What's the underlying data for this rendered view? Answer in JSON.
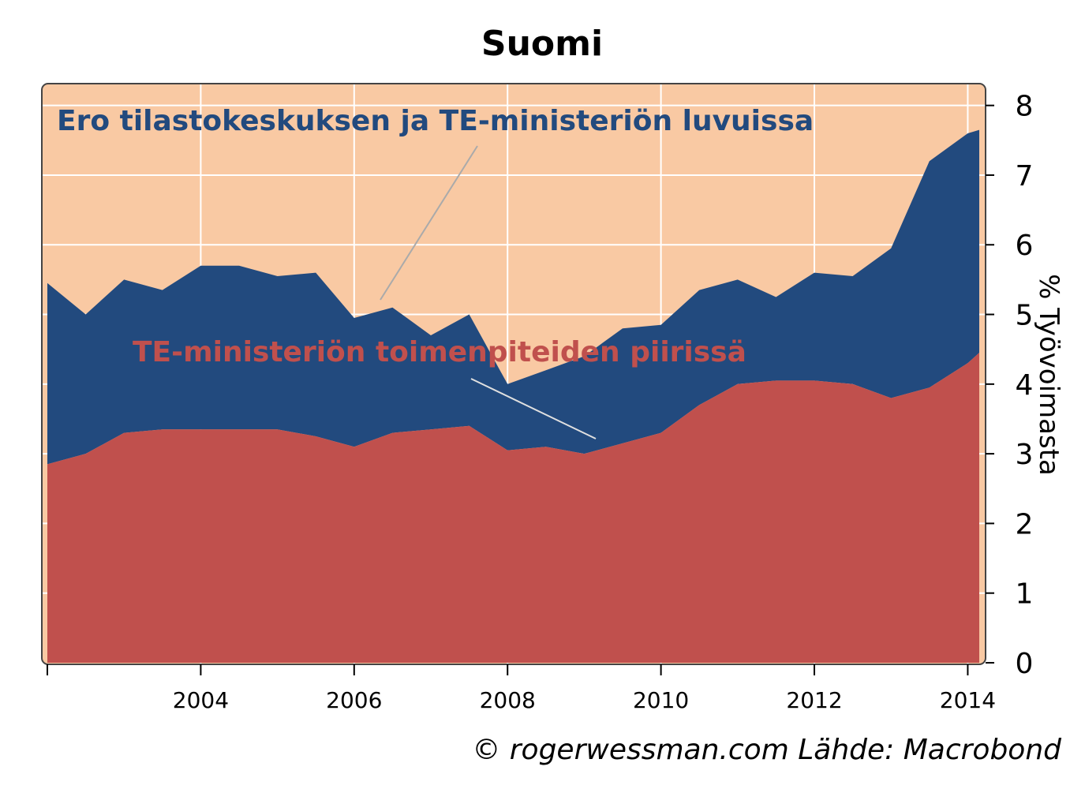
{
  "chart_data": {
    "type": "area",
    "title": "Suomi",
    "ylabel": "% Työvoimasta",
    "ylim": [
      0,
      8.2
    ],
    "xlim": [
      2002.0,
      2014.15
    ],
    "x_ticks": [
      "2004",
      "2006",
      "2008",
      "2010",
      "2012",
      "2014"
    ],
    "y_ticks": [
      "0",
      "1",
      "2",
      "3",
      "4",
      "5",
      "6",
      "7",
      "8"
    ],
    "grid": true,
    "stacked": true,
    "colors": {
      "background": "#f9c9a3",
      "upper_series": "#224a7e",
      "lower_series": "#c0504d",
      "grid": "#ffffff",
      "leader_line": "#aaaaaa"
    },
    "annotations": {
      "upper": "Ero tilastokeskuksen ja TE-ministeriön luvuissa",
      "lower": "TE-ministeriön toimenpiteiden piirissä"
    },
    "series": [
      {
        "name": "TE-ministeriön toimenpiteiden piirissä",
        "x": [
          2002.0,
          2002.5,
          2003.0,
          2003.5,
          2004.0,
          2004.5,
          2005.0,
          2005.5,
          2006.0,
          2006.5,
          2007.0,
          2007.5,
          2008.0,
          2008.5,
          2009.0,
          2009.5,
          2010.0,
          2010.5,
          2011.0,
          2011.5,
          2012.0,
          2012.5,
          2013.0,
          2013.5,
          2014.0,
          2014.15
        ],
        "values": [
          2.85,
          3.0,
          3.3,
          3.35,
          3.35,
          3.35,
          3.35,
          3.25,
          3.1,
          3.3,
          3.35,
          3.4,
          3.05,
          3.1,
          3.0,
          3.15,
          3.3,
          3.7,
          4.0,
          4.05,
          4.05,
          4.0,
          3.8,
          3.95,
          4.3,
          4.45
        ]
      },
      {
        "name": "Ero tilastokeskuksen ja TE-ministeriön luvuissa",
        "x": [
          2002.0,
          2002.5,
          2003.0,
          2003.5,
          2004.0,
          2004.5,
          2005.0,
          2005.5,
          2006.0,
          2006.5,
          2007.0,
          2007.5,
          2008.0,
          2008.5,
          2009.0,
          2009.5,
          2010.0,
          2010.5,
          2011.0,
          2011.5,
          2012.0,
          2012.5,
          2013.0,
          2013.5,
          2014.0,
          2014.15
        ],
        "values": [
          2.6,
          2.0,
          2.2,
          2.0,
          2.35,
          2.35,
          2.2,
          2.35,
          1.85,
          1.8,
          1.35,
          1.6,
          0.95,
          1.1,
          1.4,
          1.65,
          1.55,
          1.65,
          1.5,
          1.2,
          1.55,
          1.55,
          2.15,
          3.25,
          3.3,
          3.2
        ]
      }
    ],
    "total": [
      5.45,
      5.0,
      5.5,
      5.35,
      5.7,
      5.7,
      5.55,
      5.6,
      4.95,
      5.1,
      4.7,
      5.0,
      4.0,
      4.2,
      4.4,
      4.8,
      4.85,
      5.35,
      5.5,
      5.25,
      5.6,
      5.55,
      5.95,
      7.2,
      7.6,
      7.65
    ]
  },
  "credit": "© rogerwessman.com Lähde: Macrobond"
}
